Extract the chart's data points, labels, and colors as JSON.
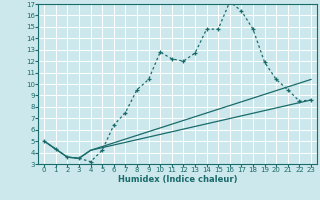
{
  "xlabel": "Humidex (Indice chaleur)",
  "xlim": [
    -0.5,
    23.5
  ],
  "ylim": [
    3,
    17
  ],
  "xticks": [
    0,
    1,
    2,
    3,
    4,
    5,
    6,
    7,
    8,
    9,
    10,
    11,
    12,
    13,
    14,
    15,
    16,
    17,
    18,
    19,
    20,
    21,
    22,
    23
  ],
  "yticks": [
    3,
    4,
    5,
    6,
    7,
    8,
    9,
    10,
    11,
    12,
    13,
    14,
    15,
    16,
    17
  ],
  "bg_color": "#cce8ec",
  "line_color": "#1a6b6b",
  "grid_color": "#ffffff",
  "line1_x": [
    0,
    1,
    2,
    3,
    4,
    5,
    6,
    7,
    8,
    9,
    10,
    11,
    12,
    13,
    14,
    15,
    16,
    17,
    18,
    19,
    20,
    21,
    22,
    23
  ],
  "line1_y": [
    5.0,
    4.3,
    3.6,
    3.5,
    3.2,
    4.2,
    6.4,
    7.5,
    9.5,
    10.4,
    12.8,
    12.2,
    12.0,
    12.7,
    14.8,
    14.8,
    17.2,
    16.4,
    14.8,
    11.9,
    10.4,
    9.5,
    8.5,
    8.6
  ],
  "line2_x": [
    0,
    2,
    3,
    4,
    23
  ],
  "line2_y": [
    5.0,
    3.6,
    3.5,
    4.2,
    10.4
  ],
  "line3_x": [
    0,
    2,
    3,
    4,
    23
  ],
  "line3_y": [
    5.0,
    3.6,
    3.5,
    4.2,
    8.6
  ]
}
